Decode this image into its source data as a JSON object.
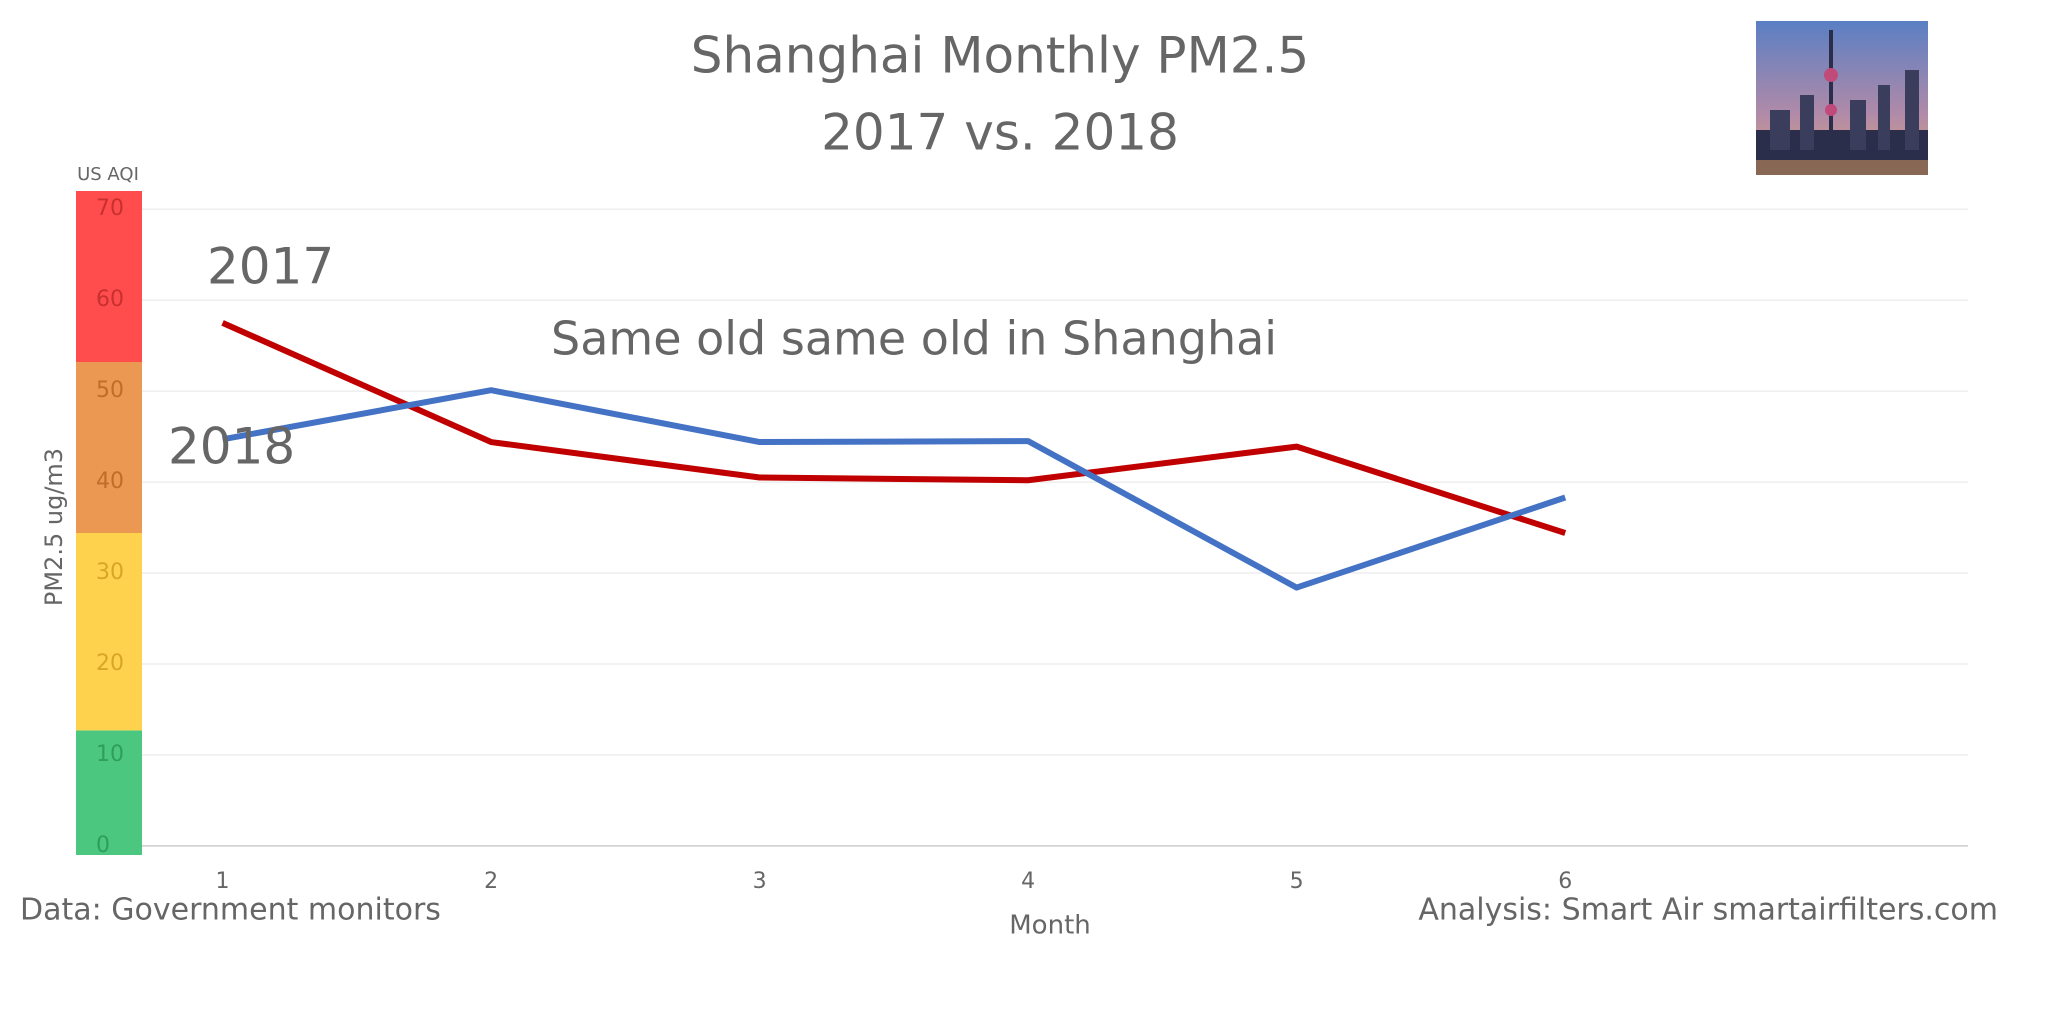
{
  "chart_data": {
    "type": "line",
    "title": [
      "Shanghai Monthly PM2.5",
      "2017 vs. 2018"
    ],
    "annotation": "Same old same old in Shanghai",
    "aqi_label": "US AQI",
    "y_label": "PM2.5 ug/m3",
    "x_label": "Month",
    "source": "Data: Government monitors",
    "credit": "Analysis: Smart Air smartairfilters.com",
    "x": [
      1,
      2,
      3,
      4,
      5,
      6
    ],
    "xlim": [
      0.7,
      7.5
    ],
    "xticks": [
      1,
      2,
      3,
      4,
      5,
      6
    ],
    "ylim": [
      -1,
      72
    ],
    "yticks": [
      0,
      10,
      20,
      30,
      40,
      50,
      60,
      70
    ],
    "grid": true,
    "aqi_bands": [
      {
        "from": -1,
        "to": 12.7,
        "color": "#4cc77f",
        "label_color": "#2f9e5c"
      },
      {
        "from": 12.7,
        "to": 34.4,
        "color": "#ffd24d",
        "label_color": "#d9a526"
      },
      {
        "from": 34.4,
        "to": 53.2,
        "color": "#eb9852",
        "label_color": "#c06d2c"
      },
      {
        "from": 53.2,
        "to": 72,
        "color": "#ff4c4c",
        "label_color": "#c93030"
      }
    ],
    "series": [
      {
        "name": "2017",
        "color": "#c00000",
        "values": [
          57.5,
          44.4,
          40.5,
          40.2,
          43.9,
          34.4
        ]
      },
      {
        "name": "2018",
        "color": "#4472c4",
        "values": [
          44.7,
          50.1,
          44.4,
          44.5,
          28.4,
          38.3
        ]
      }
    ]
  }
}
